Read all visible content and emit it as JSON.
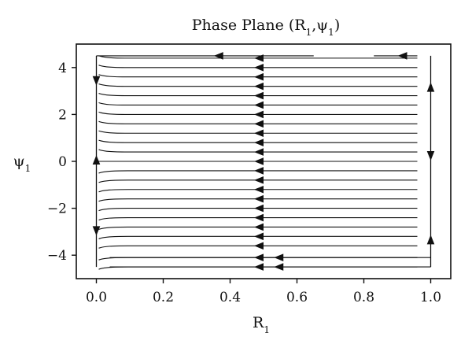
{
  "chart_data": {
    "type": "streamplot",
    "title": "Phase Plane (R",
    "title_sub1": "1",
    "title_mid": ",ψ",
    "title_sub2": "1",
    "title_end": ")",
    "xlabel": "R",
    "xlabel_sub": "1",
    "ylabel": "ψ",
    "ylabel_sub": "1",
    "xlim": [
      -0.06,
      1.06
    ],
    "ylim": [
      -5.0,
      5.0
    ],
    "xticks": [
      0.0,
      0.2,
      0.4,
      0.6,
      0.8,
      1.0
    ],
    "xtick_labels": [
      "0.0",
      "0.2",
      "0.4",
      "0.6",
      "0.8",
      "1.0"
    ],
    "yticks": [
      -4,
      -2,
      0,
      2,
      4
    ],
    "ytick_labels": [
      "−4",
      "−2",
      "0",
      "2",
      "4"
    ],
    "grid": false,
    "vertical_nullclines": [
      {
        "x": 0.0,
        "y_range": [
          -4.5,
          4.5
        ],
        "arrows": [
          {
            "y": 3.5,
            "dir": "down"
          },
          {
            "y": 0.0,
            "dir": "up"
          },
          {
            "y": -2.9,
            "dir": "down"
          }
        ]
      },
      {
        "x": 1.0,
        "y_range": [
          -4.5,
          4.5
        ],
        "arrows": [
          {
            "y": 3.1,
            "dir": "up"
          },
          {
            "y": 0.3,
            "dir": "down"
          },
          {
            "y": -3.4,
            "dir": "up"
          }
        ]
      }
    ],
    "horizontal_streamlines": {
      "y_values": [
        -4.5,
        -4.1,
        -3.6,
        -3.2,
        -2.8,
        -2.4,
        -2.0,
        -1.6,
        -1.2,
        -0.8,
        -0.4,
        0.0,
        0.4,
        0.8,
        1.2,
        1.6,
        2.0,
        2.4,
        2.8,
        3.2,
        3.6,
        4.0,
        4.4
      ],
      "x_range": [
        0.0,
        0.96
      ],
      "arrow_x": 0.5,
      "arrow_dir": "left"
    },
    "top_streamline": {
      "y": 4.5,
      "segments": [
        [
          0.0,
          0.65
        ],
        [
          0.83,
          0.96
        ]
      ],
      "arrows": [
        {
          "x": 0.37,
          "dir": "left"
        },
        {
          "x": 0.92,
          "dir": "left"
        }
      ]
    },
    "bottom_streamlines": [
      {
        "y": -4.1,
        "x_range": [
          0.04,
          1.0
        ],
        "arrow_x": 0.55,
        "dir": "left"
      },
      {
        "y": -4.5,
        "x_range": [
          0.04,
          1.0
        ],
        "arrow_x": 0.55,
        "dir": "left"
      }
    ]
  }
}
